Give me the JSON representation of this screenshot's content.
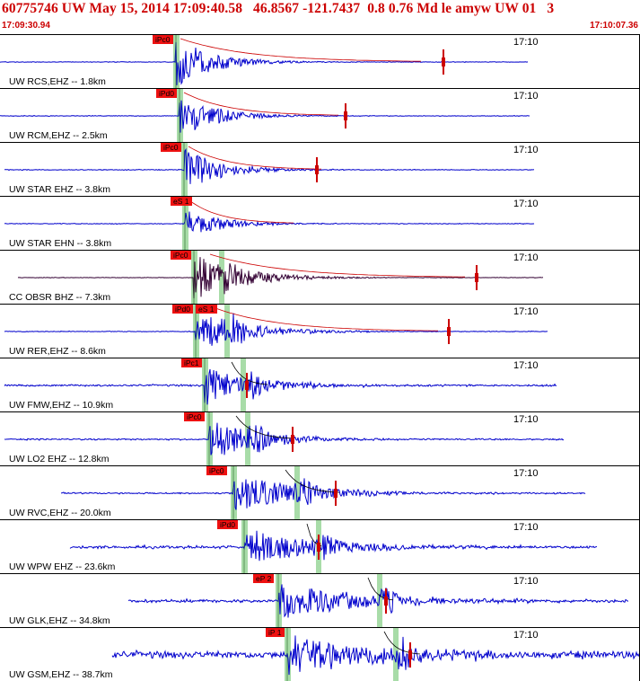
{
  "header": {
    "title": "60775746 UW May 15, 2014 17:09:40.58   46.8567 -121.7437  0.8 0.76 Md le amyw UW 01   3",
    "start_time": "17:09:30.94",
    "end_time": "17:10:07.36"
  },
  "colors": {
    "header_text": "#cc0000",
    "trace_default": "#0000cc",
    "trace_alt": "#330033",
    "pick_box": "#ee1111",
    "pick_window": "#a8dca8",
    "envelope": "#000000",
    "synthetic": "#cc0000"
  },
  "traces": [
    {
      "station": "UW RCS,EHZ -- 1.8km",
      "time_tick": "17:10",
      "picks": [
        "iPc0"
      ],
      "color": "blue",
      "amp": 1.0,
      "noise": 0.04
    },
    {
      "station": "UW RCM,EHZ -- 2.5km",
      "time_tick": "17:10",
      "picks": [
        "iPd0"
      ],
      "color": "blue",
      "amp": 0.9,
      "noise": 0.04
    },
    {
      "station": "UW STAR EHZ -- 3.8km",
      "time_tick": "17:10",
      "picks": [
        "iPc0"
      ],
      "color": "blue",
      "amp": 0.85,
      "noise": 0.05
    },
    {
      "station": "UW STAR EHN -- 3.8km",
      "time_tick": "17:10",
      "picks": [
        "eS 1"
      ],
      "color": "blue",
      "amp": 0.6,
      "noise": 0.05
    },
    {
      "station": "CC OBSR BHZ -- 7.3km",
      "time_tick": "17:10",
      "picks": [
        "iPc0"
      ],
      "color": "dark",
      "amp": 0.95,
      "noise": 0.03
    },
    {
      "station": "UW RER,EHZ -- 8.6km",
      "time_tick": "17:10",
      "picks": [
        "iPd0",
        "eS 1"
      ],
      "color": "blue",
      "amp": 0.9,
      "noise": 0.05
    },
    {
      "station": "UW FMW,EHZ -- 10.9km",
      "time_tick": "17:10",
      "picks": [
        "iPc1"
      ],
      "color": "blue",
      "amp": 0.8,
      "noise": 0.12
    },
    {
      "station": "UW LO2 EHZ -- 12.8km",
      "time_tick": "17:10",
      "picks": [
        "iPc0"
      ],
      "color": "blue",
      "amp": 0.85,
      "noise": 0.1
    },
    {
      "station": "UW RVC,EHZ -- 20.0km",
      "time_tick": "17:10",
      "picks": [
        "iPc0"
      ],
      "color": "blue",
      "amp": 0.8,
      "noise": 0.1
    },
    {
      "station": "UW WPW EHZ -- 23.6km",
      "time_tick": "17:10",
      "picks": [
        "iPd0"
      ],
      "color": "blue",
      "amp": 0.75,
      "noise": 0.18
    },
    {
      "station": "UW GLK,EHZ -- 34.8km",
      "time_tick": "17:10",
      "picks": [
        "eP 2"
      ],
      "color": "blue",
      "amp": 0.7,
      "noise": 0.2
    },
    {
      "station": "UW GSM,EHZ -- 38.7km",
      "time_tick": "17:10",
      "picks": [
        "iP 1"
      ],
      "color": "blue",
      "amp": 0.8,
      "noise": 0.45
    }
  ]
}
